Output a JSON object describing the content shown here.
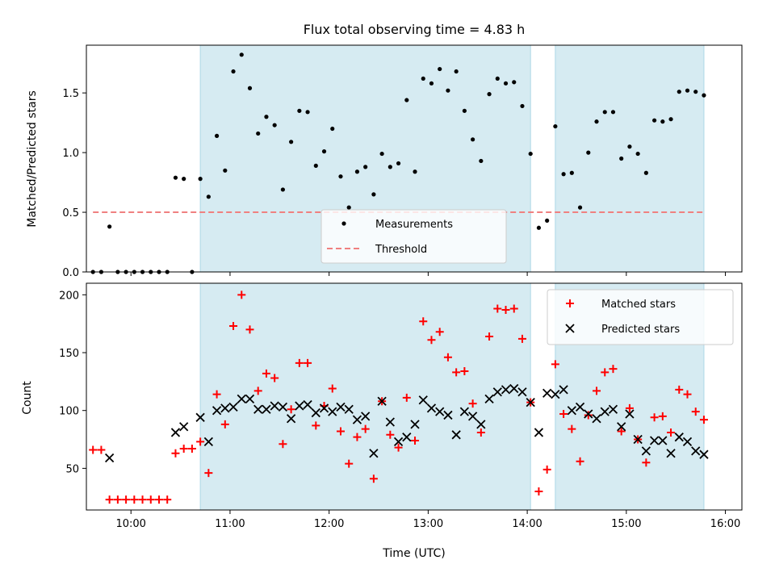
{
  "chart_data": [
    {
      "type": "scatter",
      "title": "Flux total observing time = 4.83 h",
      "xlabel": "",
      "ylabel": "Matched/Predicted stars",
      "xlim": [
        "09:33",
        "16:10"
      ],
      "ylim": [
        0,
        1.9
      ],
      "x_ticks": [
        "10:00",
        "11:00",
        "12:00",
        "13:00",
        "14:00",
        "15:00",
        "16:00"
      ],
      "y_ticks": [
        "0.0",
        "0.5",
        "1.0",
        "1.5"
      ],
      "shaded_intervals": [
        [
          "10:42",
          "14:02"
        ],
        [
          "14:17",
          "15:47"
        ]
      ],
      "shade_color": "#add8e6",
      "threshold": 0.5,
      "legend_position": "lower center",
      "series": [
        {
          "name": "Measurements",
          "marker": "dot",
          "color": "#000000",
          "points": [
            [
              "09:37",
              0.0
            ],
            [
              "09:42",
              0.0
            ],
            [
              "09:47",
              0.38
            ],
            [
              "09:52",
              0.0
            ],
            [
              "09:57",
              0.0
            ],
            [
              "10:02",
              0.0
            ],
            [
              "10:07",
              0.0
            ],
            [
              "10:12",
              0.0
            ],
            [
              "10:17",
              0.0
            ],
            [
              "10:22",
              0.0
            ],
            [
              "10:27",
              0.79
            ],
            [
              "10:32",
              0.78
            ],
            [
              "10:37",
              0.0
            ],
            [
              "10:42",
              0.78
            ],
            [
              "10:47",
              0.63
            ],
            [
              "10:52",
              1.14
            ],
            [
              "10:57",
              0.85
            ],
            [
              "11:02",
              1.68
            ],
            [
              "11:07",
              1.82
            ],
            [
              "11:12",
              1.54
            ],
            [
              "11:17",
              1.16
            ],
            [
              "11:22",
              1.3
            ],
            [
              "11:27",
              1.23
            ],
            [
              "11:32",
              0.69
            ],
            [
              "11:37",
              1.09
            ],
            [
              "11:42",
              1.35
            ],
            [
              "11:47",
              1.34
            ],
            [
              "11:52",
              0.89
            ],
            [
              "11:57",
              1.01
            ],
            [
              "12:02",
              1.2
            ],
            [
              "12:07",
              0.8
            ],
            [
              "12:12",
              0.54
            ],
            [
              "12:17",
              0.84
            ],
            [
              "12:22",
              0.88
            ],
            [
              "12:27",
              0.65
            ],
            [
              "12:32",
              0.99
            ],
            [
              "12:37",
              0.88
            ],
            [
              "12:42",
              0.91
            ],
            [
              "12:47",
              1.44
            ],
            [
              "12:52",
              0.84
            ],
            [
              "12:57",
              1.62
            ],
            [
              "13:02",
              1.58
            ],
            [
              "13:07",
              1.7
            ],
            [
              "13:12",
              1.52
            ],
            [
              "13:17",
              1.68
            ],
            [
              "13:22",
              1.35
            ],
            [
              "13:27",
              1.11
            ],
            [
              "13:32",
              0.93
            ],
            [
              "13:37",
              1.49
            ],
            [
              "13:42",
              1.62
            ],
            [
              "13:47",
              1.58
            ],
            [
              "13:52",
              1.59
            ],
            [
              "13:57",
              1.39
            ],
            [
              "14:02",
              0.99
            ],
            [
              "14:07",
              0.37
            ],
            [
              "14:12",
              0.43
            ],
            [
              "14:17",
              1.22
            ],
            [
              "14:22",
              0.82
            ],
            [
              "14:27",
              0.83
            ],
            [
              "14:32",
              0.54
            ],
            [
              "14:37",
              1.0
            ],
            [
              "14:42",
              1.26
            ],
            [
              "14:47",
              1.34
            ],
            [
              "14:52",
              1.34
            ],
            [
              "14:57",
              0.95
            ],
            [
              "15:02",
              1.05
            ],
            [
              "15:07",
              0.99
            ],
            [
              "15:12",
              0.83
            ],
            [
              "15:17",
              1.27
            ],
            [
              "15:22",
              1.26
            ],
            [
              "15:27",
              1.28
            ],
            [
              "15:32",
              1.51
            ],
            [
              "15:37",
              1.52
            ],
            [
              "15:42",
              1.51
            ],
            [
              "15:47",
              1.48
            ]
          ]
        },
        {
          "name": "Threshold",
          "line_style": "dashed",
          "color": "#f08080",
          "points": [
            [
              "09:37",
              0.5
            ],
            [
              "15:47",
              0.5
            ]
          ]
        }
      ]
    },
    {
      "type": "scatter",
      "title": "",
      "xlabel": "Time (UTC)",
      "ylabel": "Count",
      "xlim": [
        "09:33",
        "16:10"
      ],
      "ylim": [
        14,
        210
      ],
      "x_ticks": [
        "10:00",
        "11:00",
        "12:00",
        "13:00",
        "14:00",
        "15:00",
        "16:00"
      ],
      "y_ticks": [
        "50",
        "100",
        "150",
        "200"
      ],
      "shaded_intervals": [
        [
          "10:42",
          "14:02"
        ],
        [
          "14:17",
          "15:47"
        ]
      ],
      "shade_color": "#add8e6",
      "legend_position": "upper right",
      "series": [
        {
          "name": "Matched stars",
          "marker": "plus",
          "color": "#ff0000",
          "points": [
            [
              "09:37",
              66
            ],
            [
              "09:42",
              66
            ],
            [
              "09:47",
              23
            ],
            [
              "09:52",
              23
            ],
            [
              "09:57",
              23
            ],
            [
              "10:02",
              23
            ],
            [
              "10:07",
              23
            ],
            [
              "10:12",
              23
            ],
            [
              "10:17",
              23
            ],
            [
              "10:22",
              23
            ],
            [
              "10:27",
              63
            ],
            [
              "10:32",
              67
            ],
            [
              "10:37",
              67
            ],
            [
              "10:42",
              73
            ],
            [
              "10:47",
              46
            ],
            [
              "10:52",
              114
            ],
            [
              "10:57",
              88
            ],
            [
              "11:02",
              173
            ],
            [
              "11:07",
              200
            ],
            [
              "11:12",
              170
            ],
            [
              "11:17",
              117
            ],
            [
              "11:22",
              132
            ],
            [
              "11:27",
              128
            ],
            [
              "11:32",
              71
            ],
            [
              "11:37",
              101
            ],
            [
              "11:42",
              141
            ],
            [
              "11:47",
              141
            ],
            [
              "11:52",
              87
            ],
            [
              "11:57",
              104
            ],
            [
              "12:02",
              119
            ],
            [
              "12:07",
              82
            ],
            [
              "12:12",
              54
            ],
            [
              "12:17",
              77
            ],
            [
              "12:22",
              84
            ],
            [
              "12:27",
              41
            ],
            [
              "12:32",
              108
            ],
            [
              "12:37",
              79
            ],
            [
              "12:42",
              68
            ],
            [
              "12:47",
              111
            ],
            [
              "12:52",
              74
            ],
            [
              "12:57",
              177
            ],
            [
              "13:02",
              161
            ],
            [
              "13:07",
              168
            ],
            [
              "13:12",
              146
            ],
            [
              "13:17",
              133
            ],
            [
              "13:22",
              134
            ],
            [
              "13:27",
              106
            ],
            [
              "13:32",
              81
            ],
            [
              "13:37",
              164
            ],
            [
              "13:42",
              188
            ],
            [
              "13:47",
              187
            ],
            [
              "13:52",
              188
            ],
            [
              "13:57",
              162
            ],
            [
              "14:02",
              107
            ],
            [
              "14:07",
              30
            ],
            [
              "14:12",
              49
            ],
            [
              "14:17",
              140
            ],
            [
              "14:22",
              97
            ],
            [
              "14:27",
              84
            ],
            [
              "14:32",
              56
            ],
            [
              "14:37",
              96
            ],
            [
              "14:42",
              117
            ],
            [
              "14:47",
              133
            ],
            [
              "14:52",
              136
            ],
            [
              "14:57",
              82
            ],
            [
              "15:02",
              102
            ],
            [
              "15:07",
              75
            ],
            [
              "15:12",
              55
            ],
            [
              "15:17",
              94
            ],
            [
              "15:22",
              95
            ],
            [
              "15:27",
              81
            ],
            [
              "15:32",
              118
            ],
            [
              "15:37",
              114
            ],
            [
              "15:42",
              99
            ],
            [
              "15:47",
              92
            ]
          ]
        },
        {
          "name": "Predicted stars",
          "marker": "x",
          "color": "#000000",
          "points": [
            [
              "09:47",
              59
            ],
            [
              "10:27",
              81
            ],
            [
              "10:32",
              86
            ],
            [
              "10:42",
              94
            ],
            [
              "10:47",
              73
            ],
            [
              "10:52",
              100
            ],
            [
              "10:57",
              102
            ],
            [
              "11:02",
              103
            ],
            [
              "11:07",
              110
            ],
            [
              "11:12",
              110
            ],
            [
              "11:17",
              101
            ],
            [
              "11:22",
              101
            ],
            [
              "11:27",
              104
            ],
            [
              "11:32",
              103
            ],
            [
              "11:37",
              93
            ],
            [
              "11:42",
              104
            ],
            [
              "11:47",
              105
            ],
            [
              "11:52",
              98
            ],
            [
              "11:57",
              102
            ],
            [
              "12:02",
              99
            ],
            [
              "12:07",
              103
            ],
            [
              "12:12",
              101
            ],
            [
              "12:17",
              92
            ],
            [
              "12:22",
              95
            ],
            [
              "12:27",
              63
            ],
            [
              "12:32",
              108
            ],
            [
              "12:37",
              90
            ],
            [
              "12:42",
              73
            ],
            [
              "12:47",
              77
            ],
            [
              "12:52",
              88
            ],
            [
              "12:57",
              109
            ],
            [
              "13:02",
              102
            ],
            [
              "13:07",
              99
            ],
            [
              "13:12",
              96
            ],
            [
              "13:17",
              79
            ],
            [
              "13:22",
              99
            ],
            [
              "13:27",
              95
            ],
            [
              "13:32",
              88
            ],
            [
              "13:37",
              110
            ],
            [
              "13:42",
              116
            ],
            [
              "13:47",
              118
            ],
            [
              "13:52",
              119
            ],
            [
              "13:57",
              116
            ],
            [
              "14:02",
              107
            ],
            [
              "14:07",
              81
            ],
            [
              "14:12",
              115
            ],
            [
              "14:17",
              114
            ],
            [
              "14:22",
              118
            ],
            [
              "14:27",
              100
            ],
            [
              "14:32",
              103
            ],
            [
              "14:37",
              97
            ],
            [
              "14:42",
              93
            ],
            [
              "14:47",
              99
            ],
            [
              "14:52",
              101
            ],
            [
              "14:57",
              86
            ],
            [
              "15:02",
              97
            ],
            [
              "15:07",
              75
            ],
            [
              "15:12",
              65
            ],
            [
              "15:17",
              74
            ],
            [
              "15:22",
              74
            ],
            [
              "15:27",
              63
            ],
            [
              "15:32",
              77
            ],
            [
              "15:37",
              73
            ],
            [
              "15:42",
              65
            ],
            [
              "15:47",
              62
            ]
          ]
        }
      ]
    }
  ]
}
